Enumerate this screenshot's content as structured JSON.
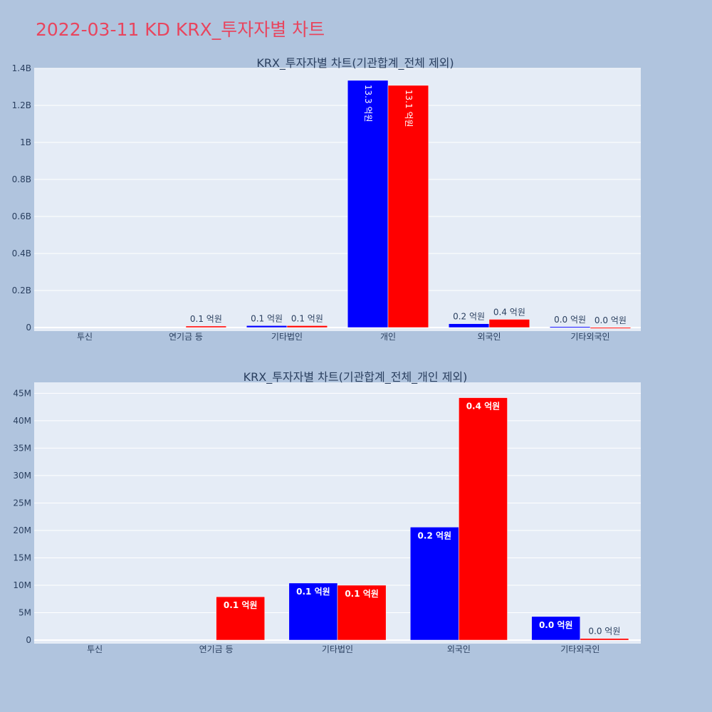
{
  "page": {
    "title": "2022-03-11 KD KRX_투자자별 차트"
  },
  "colors": {
    "buy": "#0000ff",
    "sell": "#ff0000",
    "plot_bg": "#e5ecf6",
    "paper_bg": "#b0c4de",
    "title": "#e8455e"
  },
  "chart_data": [
    {
      "type": "bar",
      "title": "KRX_투자자별 차트(기관합계_전체 제외)",
      "categories": [
        "투신",
        "연기금 등",
        "기타법인",
        "개인",
        "외국인",
        "기타외국인"
      ],
      "series": [
        {
          "values": [
            0,
            0,
            10400000,
            1335000000,
            20600000,
            4300000
          ],
          "labels": [
            "",
            "",
            "0.1 억원",
            "13.3 억원",
            "0.2 억원",
            "0.0 억원"
          ]
        },
        {
          "values": [
            0,
            7900000,
            10000000,
            1308000000,
            44200000,
            300000
          ],
          "labels": [
            "",
            "0.1 억원",
            "0.1 억원",
            "13.1 억원",
            "0.4 억원",
            "0.0 억원"
          ]
        }
      ],
      "ylim": [
        0,
        1400000000
      ],
      "yticks": [
        0,
        200000000,
        400000000,
        600000000,
        800000000,
        1000000000,
        1200000000,
        1400000000
      ],
      "ytick_labels": [
        "0",
        "0.2B",
        "0.4B",
        "0.6B",
        "0.8B",
        "1B",
        "1.2B",
        "1.4B"
      ],
      "grid": true
    },
    {
      "type": "bar",
      "title": "KRX_투자자별 차트(기관합계_전체_개인 제외)",
      "categories": [
        "투신",
        "연기금 등",
        "기타법인",
        "외국인",
        "기타외국인"
      ],
      "series": [
        {
          "values": [
            0,
            0,
            10400000,
            20600000,
            4300000
          ],
          "labels": [
            "",
            "",
            "0.1 억원",
            "0.2 억원",
            "0.0 억원"
          ]
        },
        {
          "values": [
            0,
            7900000,
            10000000,
            44200000,
            300000
          ],
          "labels": [
            "",
            "0.1 억원",
            "0.1 억원",
            "0.4 억원",
            "0.0 억원"
          ]
        }
      ],
      "ylim": [
        0,
        47000000
      ],
      "yticks": [
        0,
        5000000,
        10000000,
        15000000,
        20000000,
        25000000,
        30000000,
        35000000,
        40000000,
        45000000
      ],
      "ytick_labels": [
        "0",
        "5M",
        "10M",
        "15M",
        "20M",
        "25M",
        "30M",
        "35M",
        "40M",
        "45M"
      ],
      "grid": true
    }
  ]
}
